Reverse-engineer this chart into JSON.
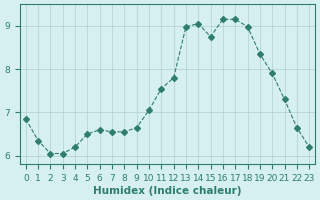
{
  "x": [
    0,
    1,
    2,
    3,
    4,
    5,
    6,
    7,
    8,
    9,
    10,
    11,
    12,
    13,
    14,
    15,
    16,
    17,
    18,
    19,
    20,
    21,
    22,
    23
  ],
  "y": [
    6.85,
    6.35,
    6.05,
    6.05,
    6.2,
    6.5,
    6.6,
    6.55,
    6.55,
    6.65,
    7.05,
    7.55,
    7.8,
    8.98,
    9.05,
    8.75,
    9.15,
    9.15,
    8.98,
    8.35,
    7.9,
    7.3,
    6.65,
    6.2
  ],
  "line_color": "#2e7d6e",
  "marker": "D",
  "marker_size": 3,
  "bg_color": "#d6f0f0",
  "grid_color": "#b0d0d0",
  "xlabel": "Humidex (Indice chaleur)",
  "xlim": [
    -0.5,
    23.5
  ],
  "ylim": [
    5.8,
    9.5
  ],
  "yticks": [
    6,
    7,
    8,
    9
  ],
  "xticks": [
    0,
    1,
    2,
    3,
    4,
    5,
    6,
    7,
    8,
    9,
    10,
    11,
    12,
    13,
    14,
    15,
    16,
    17,
    18,
    19,
    20,
    21,
    22,
    23
  ],
  "tick_color": "#2e7d6e",
  "axis_color": "#2e7d6e",
  "xlabel_fontsize": 7.5,
  "tick_fontsize": 6.5,
  "line_width": 0.8
}
